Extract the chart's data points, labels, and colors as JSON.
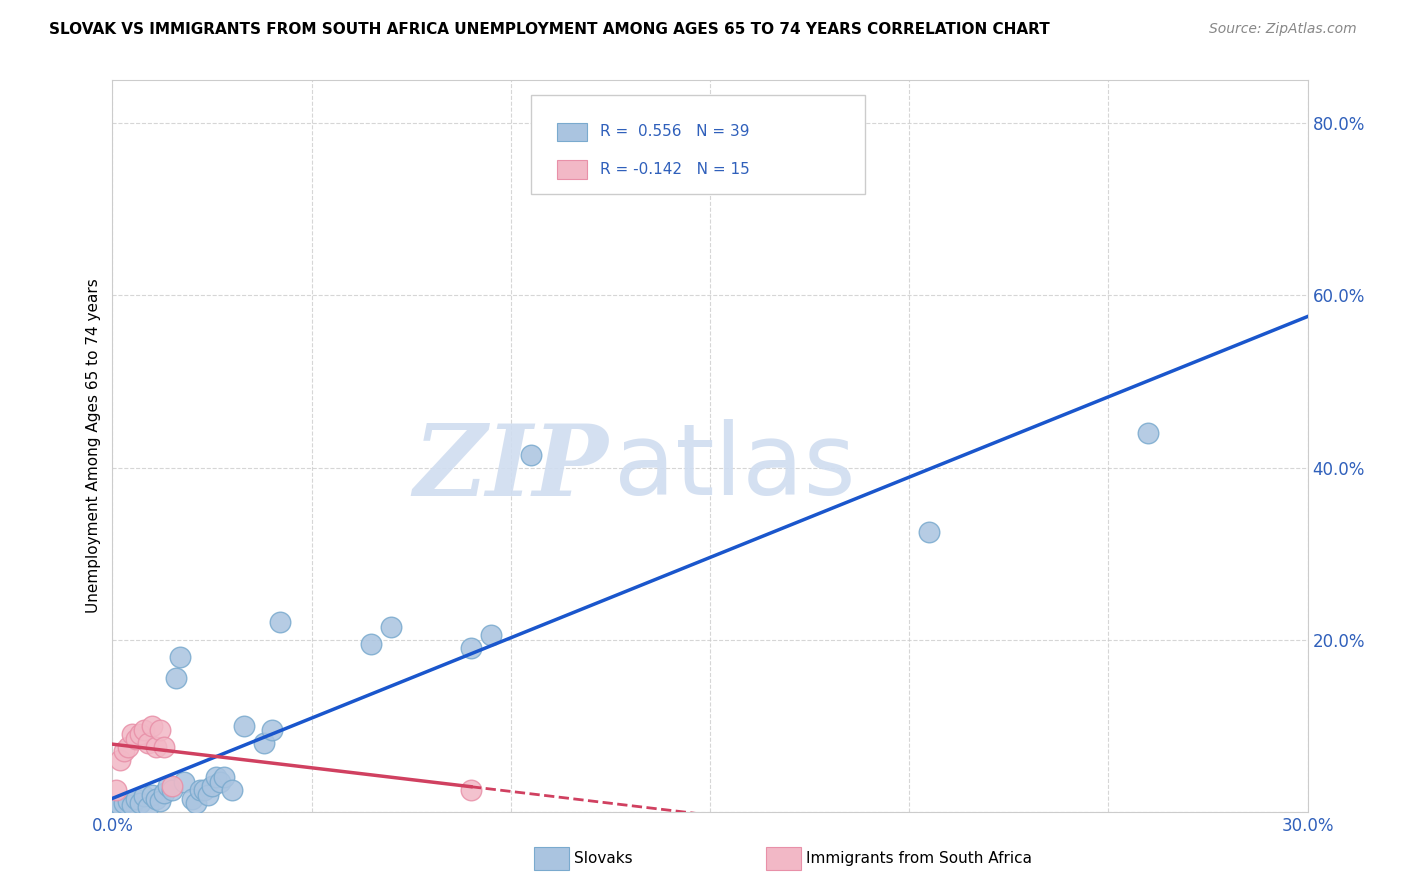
{
  "title": "SLOVAK VS IMMIGRANTS FROM SOUTH AFRICA UNEMPLOYMENT AMONG AGES 65 TO 74 YEARS CORRELATION CHART",
  "source": "Source: ZipAtlas.com",
  "ylabel": "Unemployment Among Ages 65 to 74 years",
  "xlim": [
    0.0,
    0.3
  ],
  "ylim": [
    0.0,
    0.85
  ],
  "xticks": [
    0.0,
    0.05,
    0.1,
    0.15,
    0.2,
    0.25,
    0.3
  ],
  "yticks": [
    0.0,
    0.2,
    0.4,
    0.6,
    0.8
  ],
  "slovak_R": 0.556,
  "slovak_N": 39,
  "immigrant_R": -0.142,
  "immigrant_N": 15,
  "blue_color": "#aac4e0",
  "blue_edge_color": "#7aaace",
  "pink_color": "#f2b8c6",
  "pink_edge_color": "#e890a8",
  "blue_line_color": "#1a56cc",
  "pink_line_color": "#d04060",
  "watermark_zip": "ZIP",
  "watermark_atlas": "atlas",
  "slovak_points": [
    [
      0.001,
      0.005
    ],
    [
      0.002,
      0.008
    ],
    [
      0.003,
      0.01
    ],
    [
      0.004,
      0.012
    ],
    [
      0.005,
      0.008
    ],
    [
      0.006,
      0.015
    ],
    [
      0.007,
      0.01
    ],
    [
      0.008,
      0.018
    ],
    [
      0.009,
      0.005
    ],
    [
      0.01,
      0.02
    ],
    [
      0.011,
      0.015
    ],
    [
      0.012,
      0.012
    ],
    [
      0.013,
      0.022
    ],
    [
      0.014,
      0.03
    ],
    [
      0.015,
      0.025
    ],
    [
      0.016,
      0.155
    ],
    [
      0.017,
      0.18
    ],
    [
      0.018,
      0.035
    ],
    [
      0.02,
      0.015
    ],
    [
      0.021,
      0.01
    ],
    [
      0.022,
      0.025
    ],
    [
      0.023,
      0.025
    ],
    [
      0.024,
      0.02
    ],
    [
      0.025,
      0.03
    ],
    [
      0.026,
      0.04
    ],
    [
      0.027,
      0.035
    ],
    [
      0.028,
      0.04
    ],
    [
      0.03,
      0.025
    ],
    [
      0.033,
      0.1
    ],
    [
      0.038,
      0.08
    ],
    [
      0.04,
      0.095
    ],
    [
      0.042,
      0.22
    ],
    [
      0.065,
      0.195
    ],
    [
      0.07,
      0.215
    ],
    [
      0.09,
      0.19
    ],
    [
      0.095,
      0.205
    ],
    [
      0.105,
      0.415
    ],
    [
      0.205,
      0.325
    ],
    [
      0.26,
      0.44
    ]
  ],
  "immigrant_points": [
    [
      0.001,
      0.025
    ],
    [
      0.002,
      0.06
    ],
    [
      0.003,
      0.07
    ],
    [
      0.004,
      0.075
    ],
    [
      0.005,
      0.09
    ],
    [
      0.006,
      0.085
    ],
    [
      0.007,
      0.09
    ],
    [
      0.008,
      0.095
    ],
    [
      0.009,
      0.08
    ],
    [
      0.01,
      0.1
    ],
    [
      0.011,
      0.075
    ],
    [
      0.012,
      0.095
    ],
    [
      0.013,
      0.075
    ],
    [
      0.015,
      0.03
    ],
    [
      0.09,
      0.025
    ]
  ]
}
